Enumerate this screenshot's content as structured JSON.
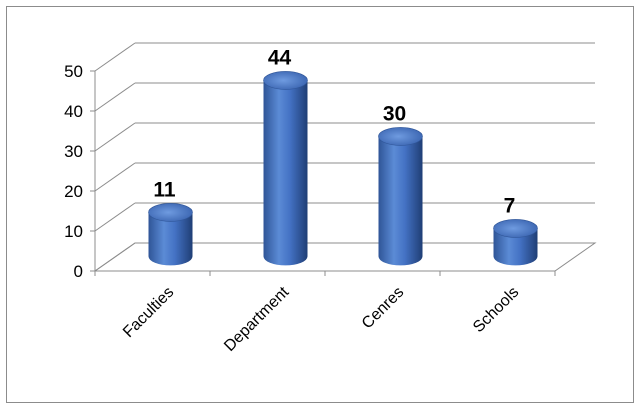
{
  "chart_data": {
    "type": "bar",
    "style": "3d-cylinder",
    "categories": [
      "Faculties",
      "Department",
      "Cenres",
      "Schools"
    ],
    "values": [
      11,
      44,
      30,
      7
    ],
    "data_labels": [
      "11",
      "44",
      "30",
      "7"
    ],
    "y_ticks": [
      "0",
      "10",
      "20",
      "30",
      "40",
      "50"
    ],
    "ylim": [
      0,
      50
    ],
    "grid": true,
    "legend": "none",
    "title": "",
    "xlabel": "",
    "ylabel": "",
    "bar_color": "#4472C4"
  }
}
